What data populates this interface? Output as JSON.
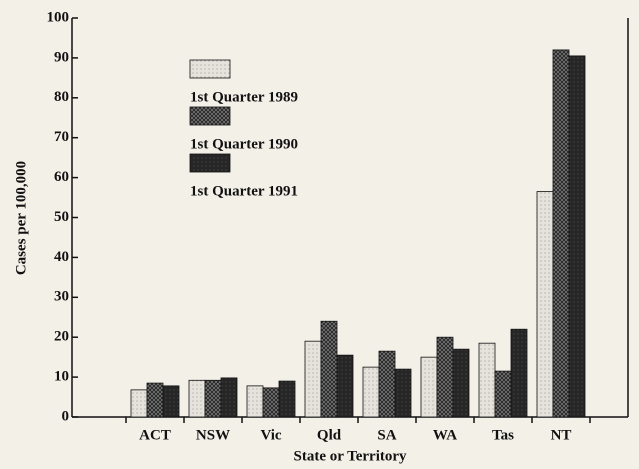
{
  "chart_data": {
    "type": "bar",
    "xlabel": "State or Territory",
    "ylabel": "Cases per 100,000",
    "categories": [
      "ACT",
      "NSW",
      "Vic",
      "Qld",
      "SA",
      "WA",
      "Tas",
      "NT"
    ],
    "series": [
      {
        "name": "1st Quarter 1989",
        "color": "#e6e3dc",
        "values": [
          6.8,
          9.2,
          7.8,
          19,
          12.5,
          15,
          18.5,
          56.5
        ]
      },
      {
        "name": "1st Quarter 1990",
        "color": "#7a7a7a",
        "values": [
          8.5,
          9.2,
          7.3,
          24,
          16.5,
          20,
          11.5,
          92
        ]
      },
      {
        "name": "1st Quarter 1991",
        "color": "#262626",
        "values": [
          7.8,
          9.8,
          9,
          15.5,
          12,
          17,
          22,
          90.5
        ]
      }
    ],
    "ylim": [
      0,
      100
    ],
    "yticks": [
      0,
      10,
      20,
      30,
      40,
      50,
      60,
      70,
      80,
      90,
      100
    ],
    "legend": "upper left"
  }
}
